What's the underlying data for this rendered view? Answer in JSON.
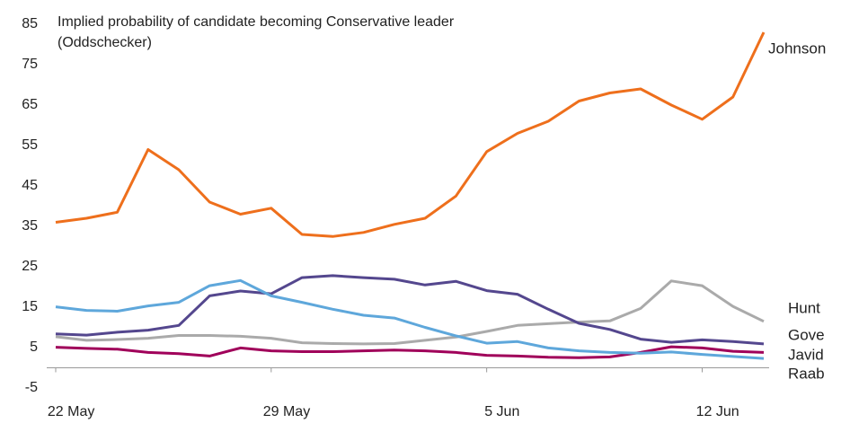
{
  "chart_data": {
    "type": "line",
    "title": "Implied probability of candidate becoming Conservative leader (Oddschecker)",
    "categories": [
      "22 May",
      null,
      null,
      null,
      null,
      null,
      null,
      "29 May",
      null,
      null,
      null,
      null,
      null,
      null,
      "5 Jun",
      null,
      null,
      null,
      null,
      null,
      null,
      "12 Jun",
      null,
      null
    ],
    "ylim": [
      -5,
      85
    ],
    "yticks": [
      -5,
      5,
      15,
      25,
      35,
      45,
      55,
      65,
      75,
      85
    ],
    "grid": false,
    "series": [
      {
        "name": "Johnson",
        "color": "#ee6f1c",
        "values": [
          36,
          37,
          38.5,
          54,
          49,
          41,
          38,
          39.5,
          33,
          32.5,
          33.5,
          35.5,
          37,
          42.5,
          53.5,
          58,
          61,
          66,
          68,
          69,
          65,
          61.5,
          67,
          83
        ]
      },
      {
        "name": "Hunt",
        "color": "#aaaaaa",
        "values": [
          7.7,
          6.8,
          7.0,
          7.3,
          8.0,
          8.0,
          7.8,
          7.3,
          6.2,
          6.0,
          5.9,
          6.0,
          6.8,
          7.6,
          9.0,
          10.5,
          10.9,
          11.3,
          11.6,
          14.7,
          21.5,
          20.3,
          15.2,
          11.5
        ]
      },
      {
        "name": "Gove",
        "color": "#54478e",
        "values": [
          8.4,
          8.1,
          8.8,
          9.3,
          10.5,
          17.8,
          19,
          18.3,
          22.3,
          22.8,
          22.3,
          21.9,
          20.5,
          21.4,
          19.1,
          18.2,
          14.5,
          11,
          9.5,
          7.1,
          6.3,
          6.9,
          6.5,
          5.9
        ]
      },
      {
        "name": "Javid",
        "color": "#a0005a",
        "values": [
          5.1,
          4.8,
          4.6,
          3.8,
          3.5,
          2.9,
          4.9,
          4.2,
          4.0,
          4.0,
          4.2,
          4.4,
          4.2,
          3.8,
          3.1,
          2.9,
          2.6,
          2.5,
          2.7,
          3.8,
          5.2,
          4.9,
          4.1,
          3.8
        ]
      },
      {
        "name": "Raab",
        "color": "#5ea7db",
        "values": [
          15.1,
          14.2,
          14.0,
          15.3,
          16.2,
          20.3,
          21.6,
          17.8,
          16.2,
          14.5,
          13.0,
          12.3,
          10.0,
          7.9,
          6.1,
          6.5,
          4.9,
          4.2,
          3.8,
          3.6,
          3.9,
          3.3,
          2.8,
          2.3
        ]
      }
    ]
  }
}
